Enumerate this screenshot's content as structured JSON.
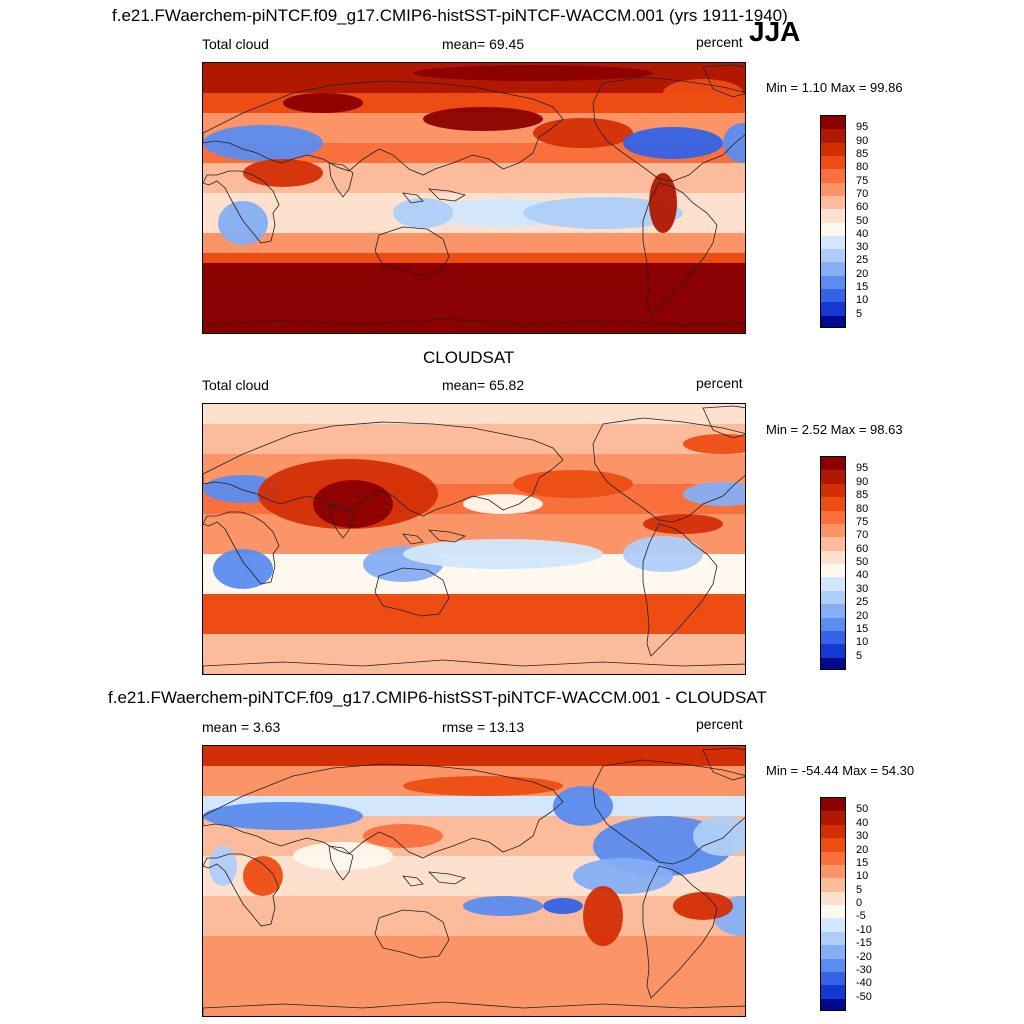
{
  "figure": {
    "title_top": "f.e21.FWaerchem-piNTCF.f09_g17.CMIP6-histSST-piNTCF-WACCM.001 (yrs 1911-1940)",
    "season": "JJA",
    "title_mid": "CLOUDSAT",
    "title_bottom": "f.e21.FWaerchem-piNTCF.f09_g17.CMIP6-histSST-piNTCF-WACCM.001 - CLOUDSAT"
  },
  "chart_data": [
    {
      "type": "heatmap",
      "panel": "model",
      "left_label": "Total cloud",
      "center_label": "mean=  69.45",
      "right_label": "percent",
      "minmax_label": "Min =   1.10 Max =  99.86",
      "mean": 69.45,
      "min": 1.1,
      "max": 99.86,
      "units": "percent",
      "colorbar": {
        "labels": [
          "95",
          "90",
          "85",
          "80",
          "75",
          "70",
          "60",
          "50",
          "40",
          "30",
          "25",
          "20",
          "15",
          "10",
          "5"
        ],
        "colors": [
          "#8b0000",
          "#b01800",
          "#d42e05",
          "#ed4d12",
          "#f9703d",
          "#fb9568",
          "#fcbc9c",
          "#fde0cd",
          "#fef8ee",
          "#d2e7fb",
          "#aecdf9",
          "#86aef4",
          "#5b8cef",
          "#3463e6",
          "#1537d2",
          "#000a8f"
        ]
      }
    },
    {
      "type": "heatmap",
      "panel": "observations",
      "left_label": "Total cloud",
      "center_label": "mean=  65.82",
      "right_label": "percent",
      "minmax_label": "Min =   2.52 Max =  98.63",
      "mean": 65.82,
      "min": 2.52,
      "max": 98.63,
      "units": "percent",
      "colorbar": {
        "labels": [
          "95",
          "90",
          "85",
          "80",
          "75",
          "70",
          "60",
          "50",
          "40",
          "30",
          "25",
          "20",
          "15",
          "10",
          "5"
        ],
        "colors": [
          "#8b0000",
          "#b01800",
          "#d42e05",
          "#ed4d12",
          "#f9703d",
          "#fb9568",
          "#fcbc9c",
          "#fde0cd",
          "#fef8ee",
          "#d2e7fb",
          "#aecdf9",
          "#86aef4",
          "#5b8cef",
          "#3463e6",
          "#1537d2",
          "#000a8f"
        ]
      }
    },
    {
      "type": "heatmap",
      "panel": "difference",
      "left_label": "mean =   3.63",
      "center_label": "rmse =  13.13",
      "right_label": "percent",
      "minmax_label": "Min = -54.44 Max =  54.30",
      "mean": 3.63,
      "rmse": 13.13,
      "min": -54.44,
      "max": 54.3,
      "units": "percent",
      "colorbar": {
        "labels": [
          "50",
          "40",
          "30",
          "20",
          "15",
          "10",
          "5",
          "0",
          "-5",
          "-10",
          "-15",
          "-20",
          "-30",
          "-40",
          "-50"
        ],
        "colors": [
          "#8b0000",
          "#b01800",
          "#d42e05",
          "#ed4d12",
          "#f9703d",
          "#fb9568",
          "#fcbc9c",
          "#fde0cd",
          "#fef8ee",
          "#d2e7fb",
          "#aecdf9",
          "#86aef4",
          "#5b8cef",
          "#3463e6",
          "#1537d2",
          "#000a8f"
        ]
      }
    }
  ]
}
